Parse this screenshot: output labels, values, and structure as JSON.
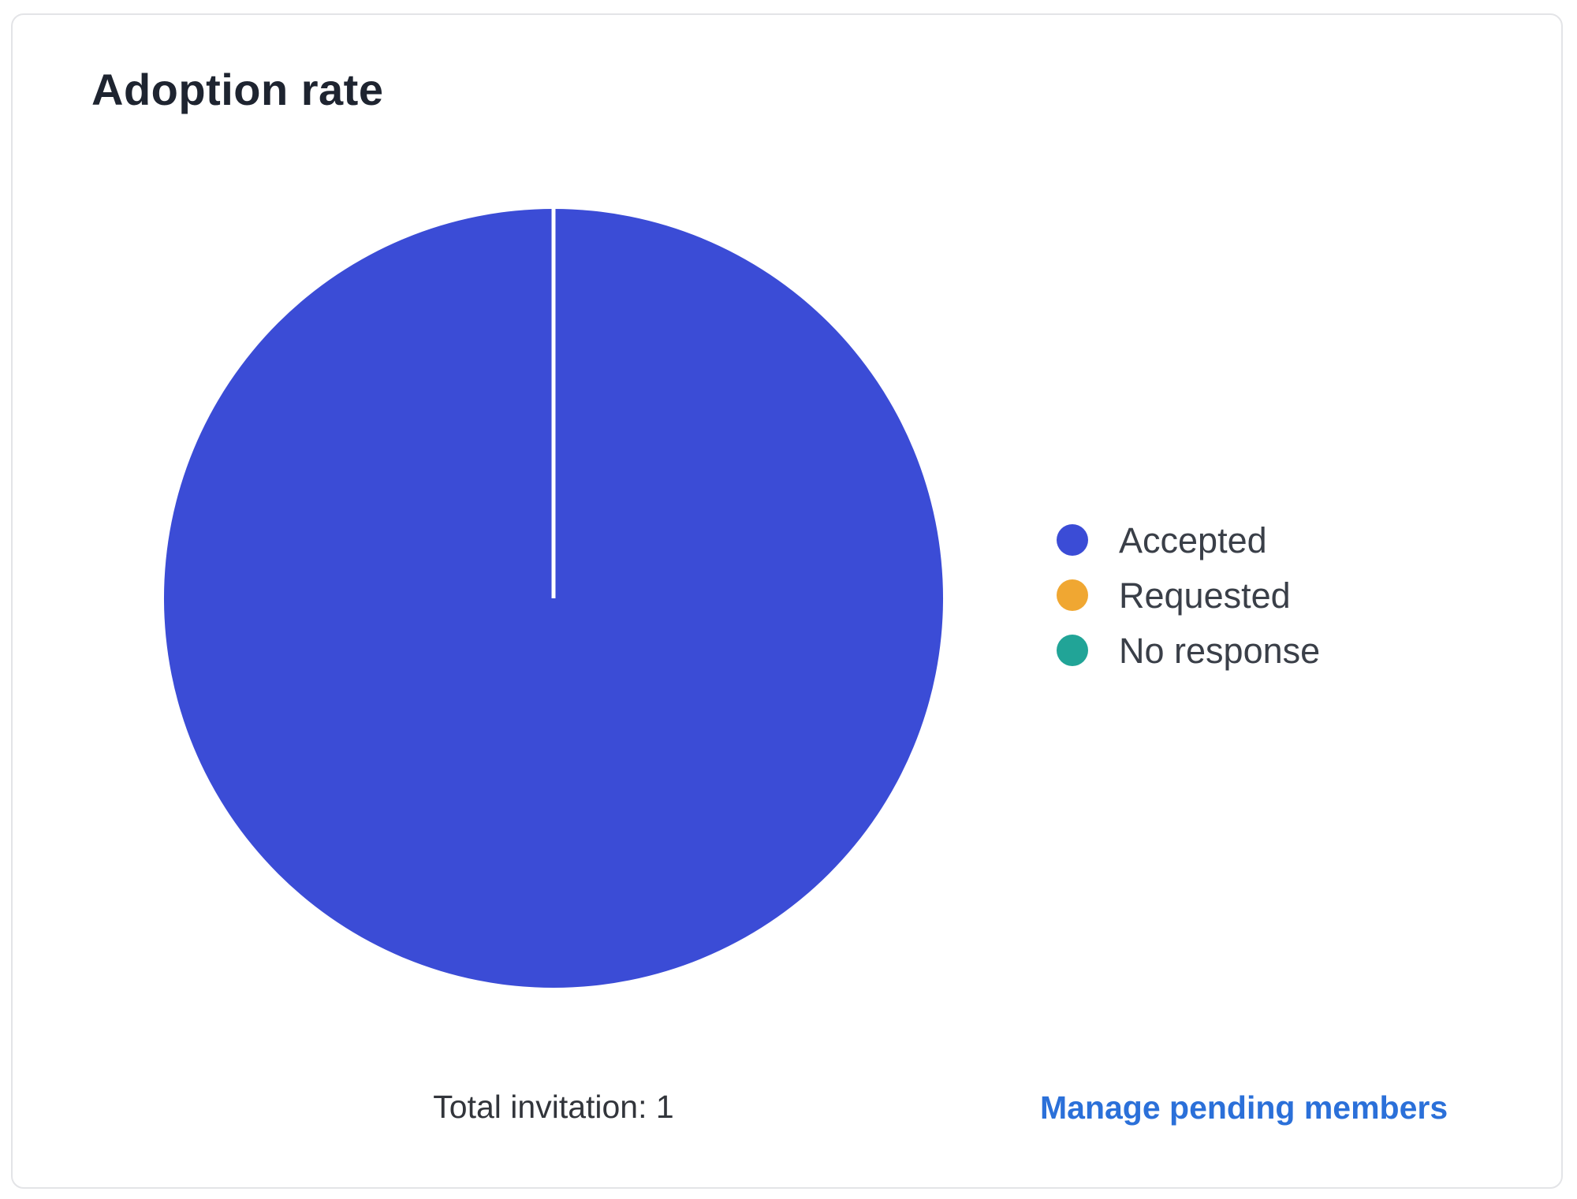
{
  "card": {
    "title": "Adoption rate"
  },
  "chart_data": {
    "type": "pie",
    "title": "Adoption rate",
    "categories": [
      "Accepted",
      "Requested",
      "No response"
    ],
    "values": [
      1,
      0,
      0
    ],
    "slices": [
      {
        "label": "Accepted",
        "value": 1,
        "color": "#3b4cd6"
      },
      {
        "label": "Requested",
        "value": 0,
        "color": "#f0a732"
      },
      {
        "label": "No response",
        "value": 0,
        "color": "#21a497"
      }
    ],
    "total": 1,
    "total_label": "Total invitation: 1",
    "legend_position": "right",
    "slice_separator_color": "#ffffff"
  },
  "footer": {
    "total_text": "Total invitation: 1",
    "link_label": "Manage pending members"
  },
  "colors": {
    "link": "#2b70d9",
    "title_text": "#1e2430",
    "body_text": "#32353b",
    "card_border": "#e3e4e7"
  }
}
